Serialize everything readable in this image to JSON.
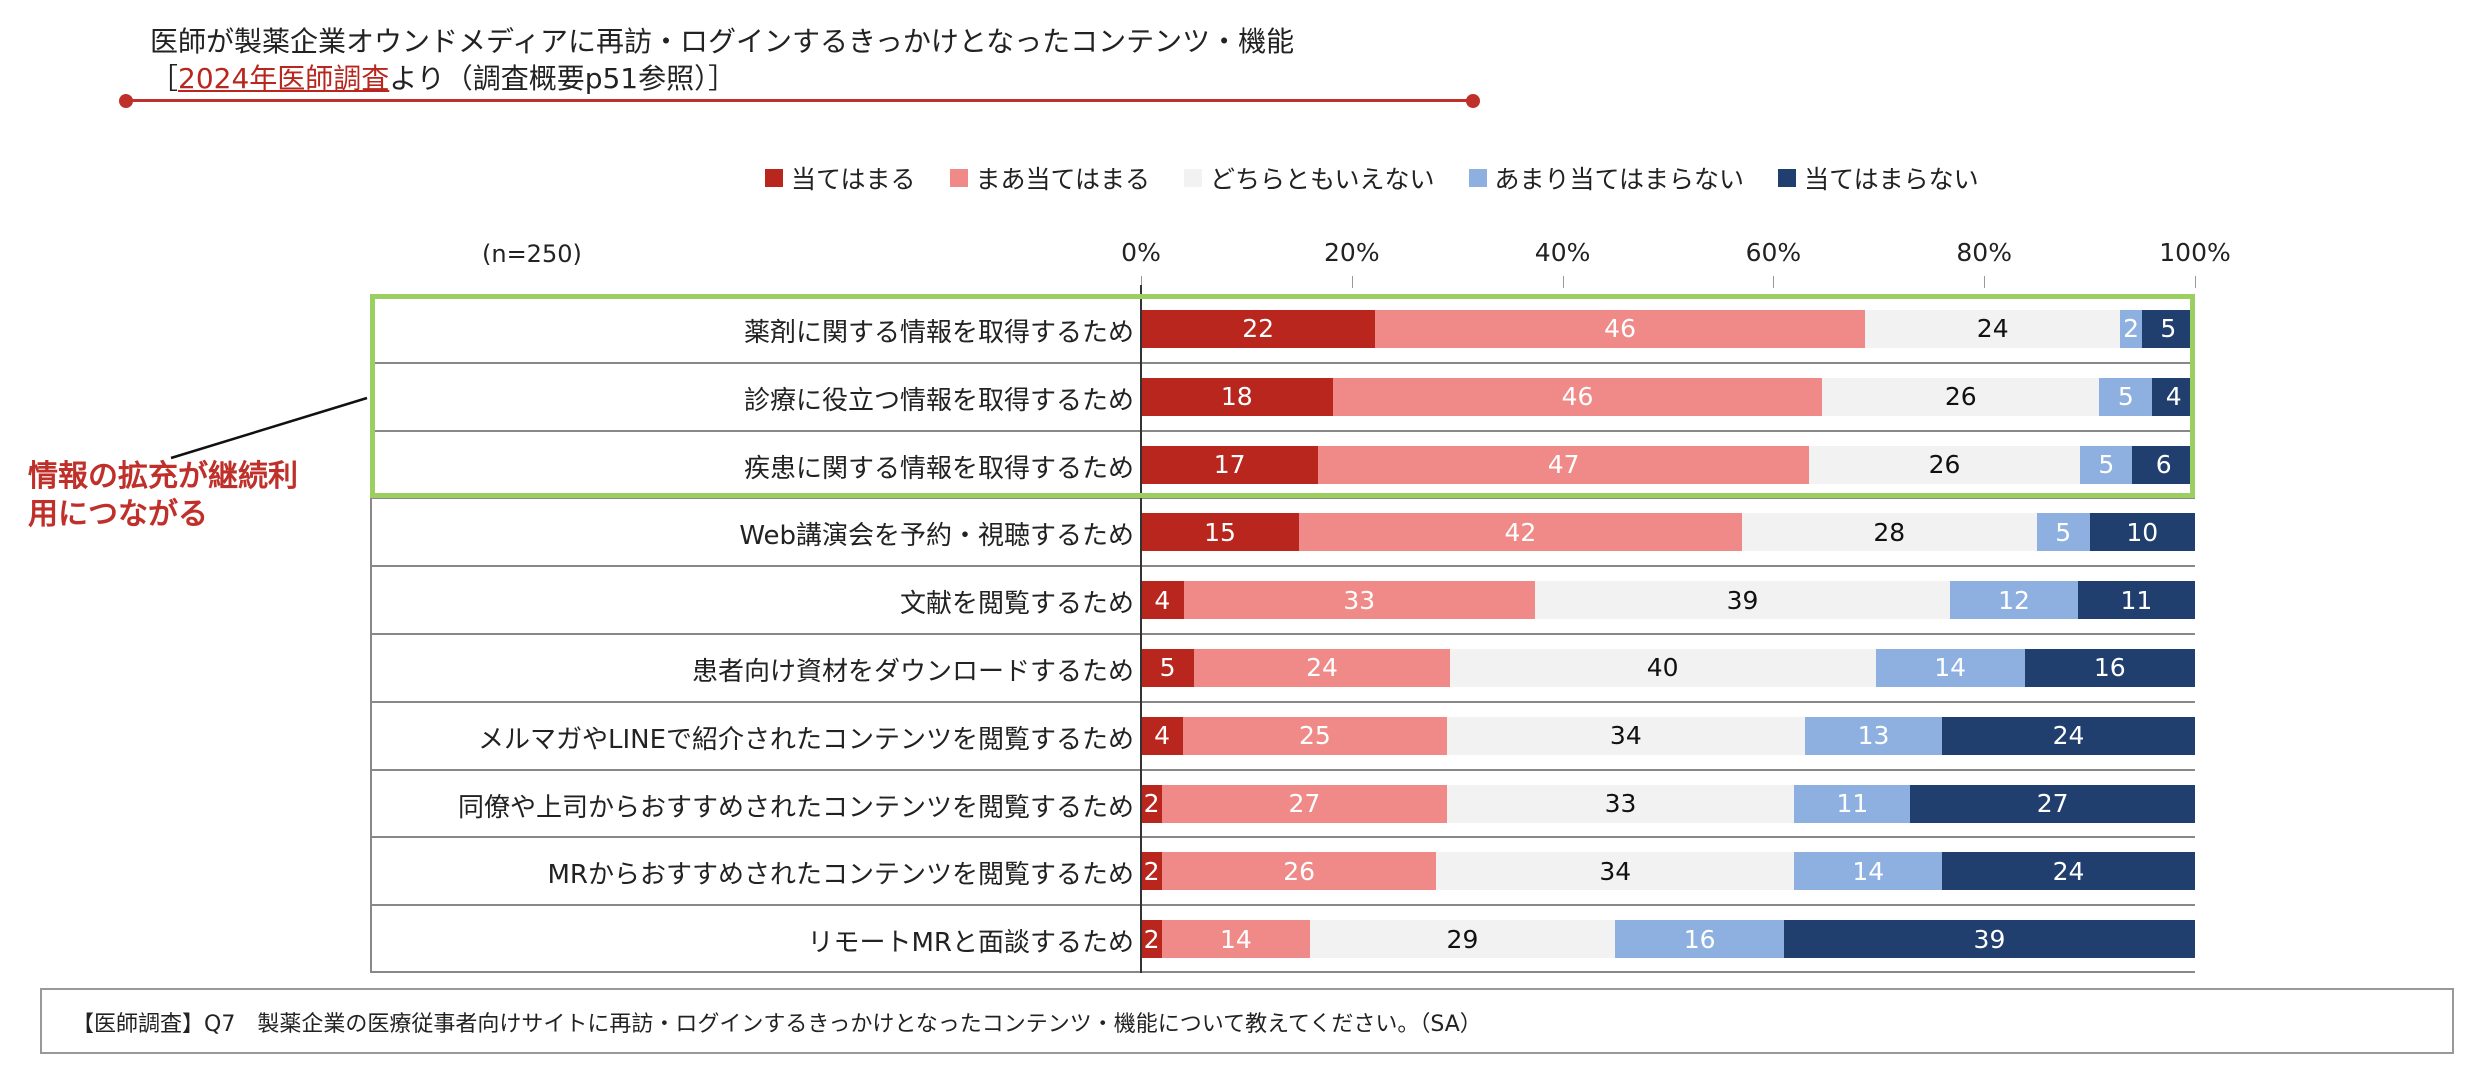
{
  "header": {
    "title": "医師が製薬企業オウンドメディアに再訪・ログインするきっかけとなったコンテンツ・機能",
    "subtitle_open": "［",
    "subtitle_source": "2024年医師調査",
    "subtitle_rest": "より（調査概要p51参照）］"
  },
  "annotation": {
    "line1": "情報の拡充が継続利",
    "line2": "用につながる"
  },
  "footer": {
    "text": "【医師調査】Q7　製薬企業の医療従事者向けサイトに再訪・ログインするきっかけとなったコンテンツ・機能について教えてください。（SA）"
  },
  "chart_data": {
    "type": "bar",
    "orientation": "horizontal",
    "stacked": "100%",
    "note": "(n=250)",
    "xlim": [
      0,
      100
    ],
    "xticks": [
      "0%",
      "20%",
      "40%",
      "60%",
      "80%",
      "100%"
    ],
    "legend_position": "top",
    "categories": [
      "薬剤に関する情報を取得するため",
      "診療に役立つ情報を取得するため",
      "疾患に関する情報を取得するため",
      "Web講演会を予約・視聴するため",
      "文献を閲覧するため",
      "患者向け資材をダウンロードするため",
      "メルマガやLINEで紹介されたコンテンツを閲覧するため",
      "同僚や上司からおすすめされたコンテンツを閲覧するため",
      "MRからおすすめされたコンテンツを閲覧するため",
      "リモートMRと面談するため"
    ],
    "series": [
      {
        "name": "当てはまる",
        "color": "#b8261d",
        "label_color": "#ffffff",
        "values": [
          22,
          18,
          17,
          15,
          4,
          5,
          4,
          2,
          2,
          2
        ]
      },
      {
        "name": "まあ当てはまる",
        "color": "#f08a88",
        "label_color": "#ffffff",
        "values": [
          46,
          46,
          47,
          42,
          33,
          24,
          25,
          27,
          26,
          14
        ]
      },
      {
        "name": "どちらともいえない",
        "color": "#f2f2f2",
        "label_color": "#111111",
        "values": [
          24,
          26,
          26,
          28,
          39,
          40,
          34,
          33,
          34,
          29
        ]
      },
      {
        "name": "あまり当てはまらない",
        "color": "#8db0e0",
        "label_color": "#ffffff",
        "values": [
          2,
          5,
          5,
          5,
          12,
          14,
          13,
          11,
          14,
          16
        ]
      },
      {
        "name": "当てはまらない",
        "color": "#203f6e",
        "label_color": "#ffffff",
        "values": [
          5,
          4,
          6,
          10,
          11,
          16,
          24,
          27,
          24,
          39
        ]
      }
    ],
    "highlight_rows": [
      0,
      1,
      2
    ],
    "highlight_color": "#9ccf62"
  }
}
